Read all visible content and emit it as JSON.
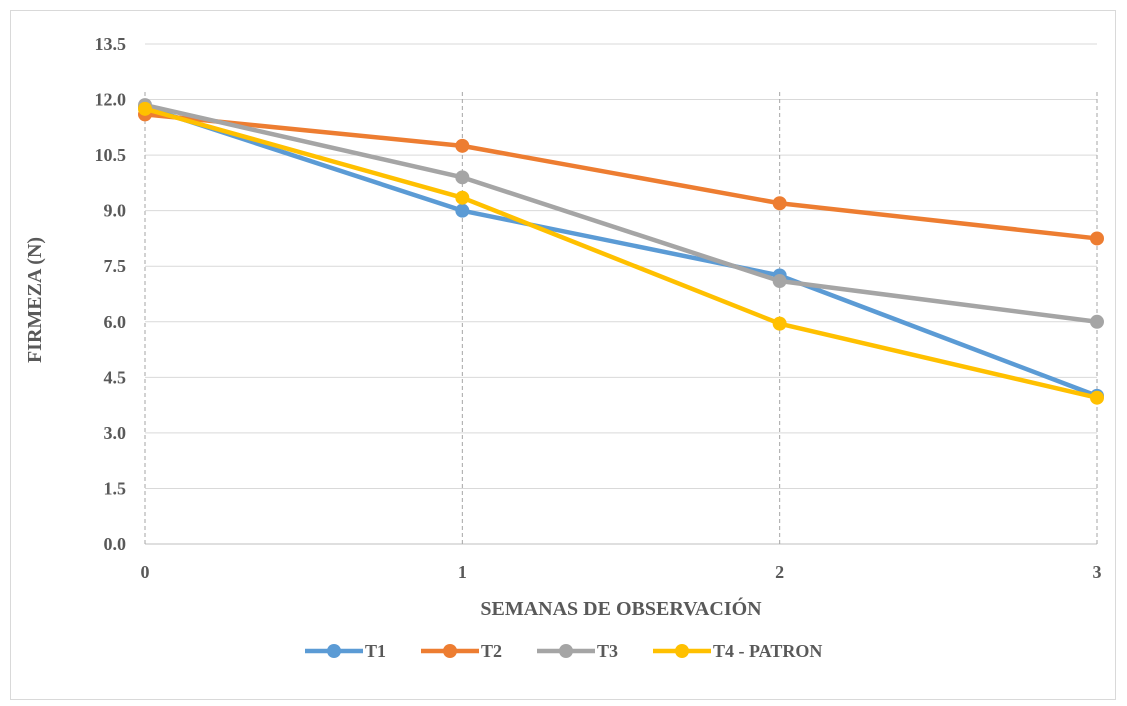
{
  "chart_data": {
    "type": "line",
    "title": "",
    "xlabel": "SEMANAS DE OBSERVACIÓN",
    "ylabel": "FIRMEZA (N)",
    "x": [
      0,
      1,
      2,
      3
    ],
    "x_tick_labels": [
      "0",
      "1",
      "2",
      "3"
    ],
    "ylim": [
      0,
      13.5
    ],
    "y_ticks": [
      0.0,
      1.5,
      3.0,
      4.5,
      6.0,
      7.5,
      9.0,
      10.5,
      12.0,
      13.5
    ],
    "y_tick_labels": [
      "0.0",
      "1.5",
      "3.0",
      "4.5",
      "6.0",
      "7.5",
      "9.0",
      "10.5",
      "12.0",
      "13.5"
    ],
    "grid": "horizontal gridlines with dashed vertical drop lines at each x value",
    "legend_position": "bottom",
    "series": [
      {
        "name": "T1",
        "color": "#5B9BD5",
        "values": [
          11.8,
          9.0,
          7.25,
          4.0
        ]
      },
      {
        "name": "T2",
        "color": "#ED7D31",
        "values": [
          11.6,
          10.75,
          9.2,
          8.25
        ]
      },
      {
        "name": "T3",
        "color": "#A5A5A5",
        "values": [
          11.85,
          9.9,
          7.1,
          6.0
        ]
      },
      {
        "name": "T4 - PATRON",
        "color": "#FFC000",
        "values": [
          11.75,
          9.35,
          5.95,
          3.95
        ]
      }
    ]
  }
}
